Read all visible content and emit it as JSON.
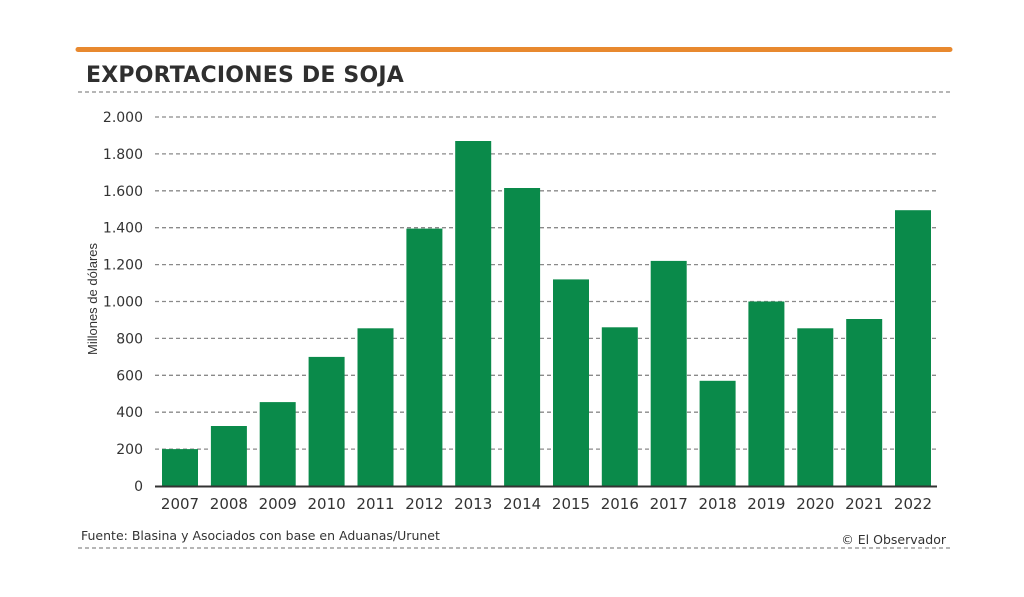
{
  "chart_data": {
    "type": "bar",
    "title": "EXPORTACIONES DE SOJA",
    "xlabel": "",
    "ylabel": "Millones de dólares",
    "ylim": [
      0,
      2000
    ],
    "yticks": [
      0,
      200,
      400,
      600,
      800,
      1000,
      1200,
      1400,
      1600,
      1800,
      2000
    ],
    "ytick_labels": [
      "0",
      "200",
      "400",
      "600",
      "800",
      "1.000",
      "1.200",
      "1.400",
      "1.600",
      "1.800",
      "2.000"
    ],
    "grid": true,
    "legend": "none",
    "categories": [
      "2007",
      "2008",
      "2009",
      "2010",
      "2011",
      "2012",
      "2013",
      "2014",
      "2015",
      "2016",
      "2017",
      "2018",
      "2019",
      "2020",
      "2021",
      "2022"
    ],
    "values": [
      200,
      325,
      455,
      700,
      855,
      1395,
      1870,
      1615,
      1120,
      860,
      1220,
      570,
      1000,
      855,
      905,
      1495
    ],
    "source": "Fuente: Blasina y Asociados con base en Aduanas/Urunet",
    "credit": "© El Observador"
  },
  "colors": {
    "bar": "#0a8a4a",
    "accent": "#e8892f",
    "title": "#2f2f2f"
  }
}
